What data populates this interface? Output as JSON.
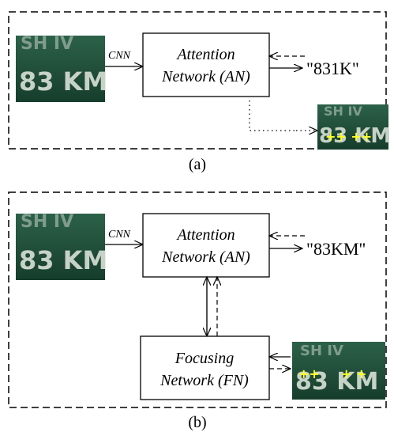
{
  "panel_a": {
    "caption": "(a)",
    "input_label": "CNN",
    "an_box_line1": "Attention",
    "an_box_line2": "Network (AN)",
    "output": "\"831K\"",
    "plate_text": "83 KM",
    "plate_marks": "++ ++"
  },
  "panel_b": {
    "caption": "(b)",
    "input_label": "CNN",
    "an_box_line1": "Attention",
    "an_box_line2": "Network (AN)",
    "fn_box_line1": "Focusing",
    "fn_box_line2": "Network (FN)",
    "output": "\"83KM\"",
    "plate_text": "83 KM",
    "plate_marks_1": "++",
    "plate_marks_2": "+ +"
  },
  "colors": {
    "plate": "#1f4f3a",
    "plate_text": "#c7d2c6",
    "marks": "#ffff22"
  }
}
